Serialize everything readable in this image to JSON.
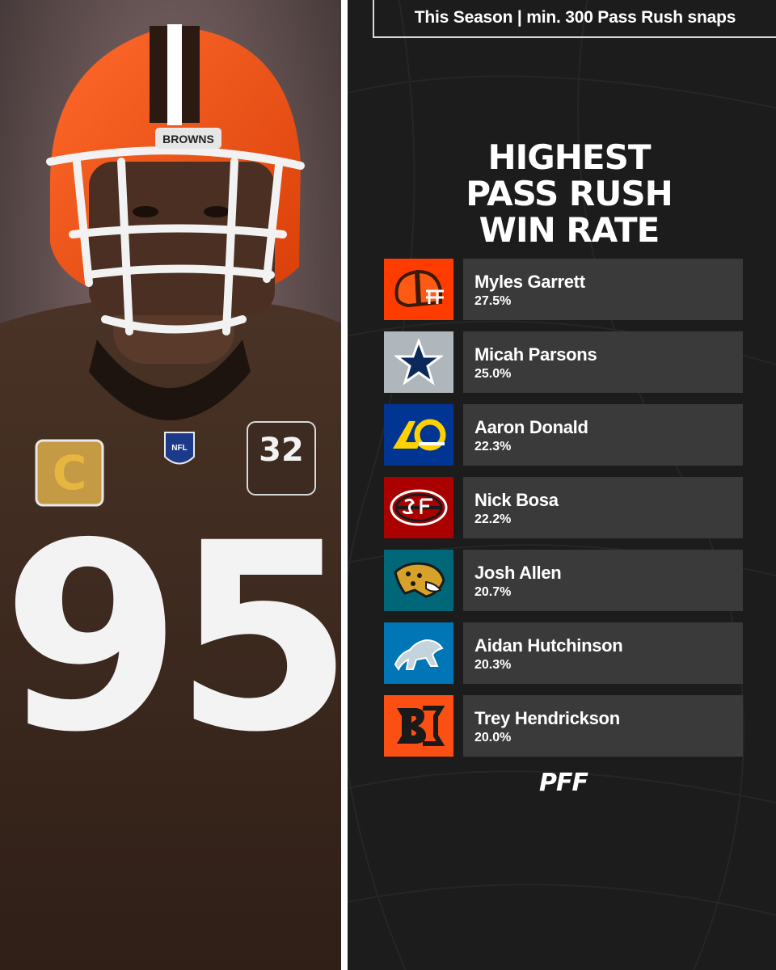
{
  "header": {
    "subtitle": "This Season | min. 300 Pass Rush snaps"
  },
  "title_lines": [
    "HIGHEST",
    "PASS RUSH",
    "WIN RATE"
  ],
  "photo": {
    "helmet_text": "BROWNS",
    "jersey_number": "95",
    "patch_number": "32",
    "captain_letter": "C",
    "shield_text": "NFL"
  },
  "players": [
    {
      "name": "Myles Garrett",
      "value": "27.5%",
      "team_icon": "browns-helmet-icon",
      "color": "#ff3c00"
    },
    {
      "name": "Micah Parsons",
      "value": "25.0%",
      "team_icon": "cowboys-star-icon",
      "color": "#b0b7bc"
    },
    {
      "name": "Aaron Donald",
      "value": "22.3%",
      "team_icon": "rams-logo-icon",
      "color": "#003594"
    },
    {
      "name": "Nick Bosa",
      "value": "22.2%",
      "team_icon": "49ers-logo-icon",
      "color": "#aa0000"
    },
    {
      "name": "Josh Allen",
      "value": "20.7%",
      "team_icon": "jaguars-logo-icon",
      "color": "#006778"
    },
    {
      "name": "Aidan Hutchinson",
      "value": "20.3%",
      "team_icon": "lions-logo-icon",
      "color": "#0076b6"
    },
    {
      "name": "Trey Hendrickson",
      "value": "20.0%",
      "team_icon": "bengals-logo-icon",
      "color": "#fb4f14"
    }
  ],
  "brand": "PFF",
  "colors": {
    "panel_bg": "#1c1c1c",
    "row_bg": "#3a3a3a",
    "text": "#ffffff"
  }
}
